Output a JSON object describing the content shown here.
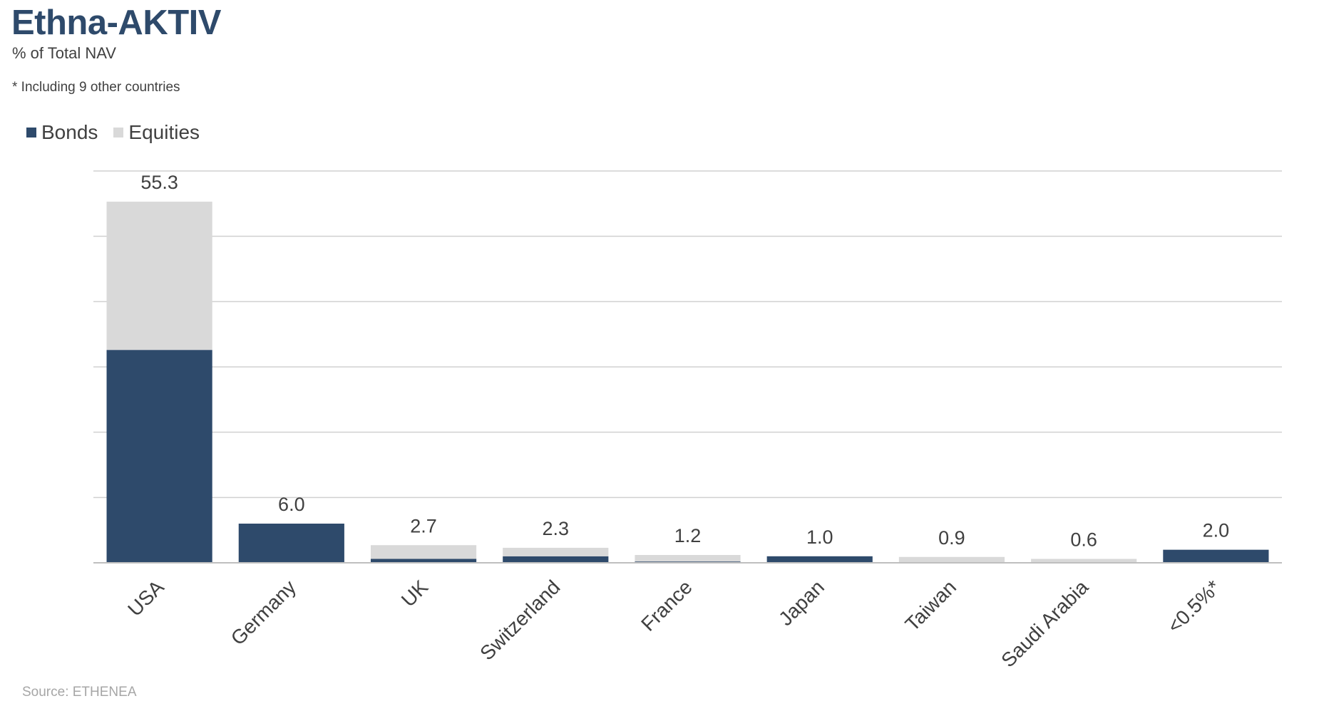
{
  "title": "Ethna-AKTIV",
  "subtitle": "% of Total NAV",
  "note": "* Including 9 other countries",
  "source": "Source: ETHENEA",
  "colors": {
    "bonds": "#2e4a6b",
    "equities": "#d9d9d9",
    "grid": "#d0d0d0",
    "text": "#404040"
  },
  "chart_data": {
    "type": "bar",
    "stacked": true,
    "categories": [
      "USA",
      "Germany",
      "UK",
      "Switzerland",
      "France",
      "Japan",
      "Taiwan",
      "Saudi Arabia",
      "<0.5%*"
    ],
    "series": [
      {
        "name": "Bonds",
        "values": [
          32.6,
          6.0,
          0.6,
          1.0,
          0.2,
          1.0,
          0.0,
          0.0,
          2.0
        ]
      },
      {
        "name": "Equities",
        "values": [
          22.7,
          0.0,
          2.1,
          1.3,
          1.0,
          0.0,
          0.9,
          0.6,
          0.0
        ]
      }
    ],
    "totals": [
      "55.3",
      "6.0",
      "2.7",
      "2.3",
      "1.2",
      "1.0",
      "0.9",
      "0.6",
      "2.0"
    ],
    "ylim": [
      0,
      60
    ],
    "grid": true,
    "legend": "top-left",
    "xlabel": "",
    "ylabel": ""
  }
}
